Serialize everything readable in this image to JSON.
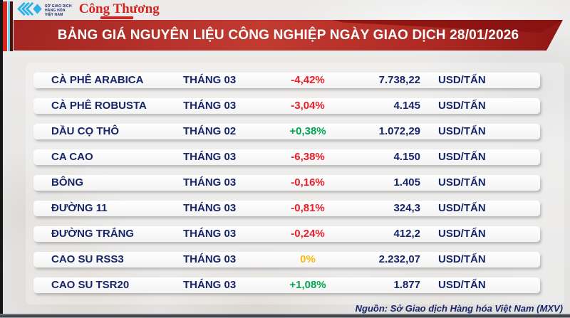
{
  "logos": {
    "mxv": {
      "lines": [
        "SỞ GIAO DỊCH",
        "HÀNG HÓA",
        "VIỆT NAM"
      ]
    },
    "congthuong": {
      "text": "Công Thương"
    }
  },
  "header": {
    "title": "BẢNG GIÁ NGUYÊN LIỆU CÔNG NGHIỆP NGÀY GIAO DỊCH 28/01/2026"
  },
  "table": {
    "rows": [
      {
        "name": "CÀ PHÊ ARABICA",
        "month": "THÁNG 03",
        "change": "-4,42%",
        "direction": "down",
        "price": "7.738,22",
        "unit": "USD/TẤN"
      },
      {
        "name": "CÀ PHÊ ROBUSTA",
        "month": "THÁNG 03",
        "change": "-3,04%",
        "direction": "down",
        "price": "4.145",
        "unit": "USD/TẤN"
      },
      {
        "name": "DẦU CỌ THÔ",
        "month": "THÁNG 02",
        "change": "+0,38%",
        "direction": "up",
        "price": "1.072,29",
        "unit": "USD/TẤN"
      },
      {
        "name": "CA CAO",
        "month": "THÁNG 03",
        "change": "-6,38%",
        "direction": "down",
        "price": "4.150",
        "unit": "USD/TẤN"
      },
      {
        "name": "BÔNG",
        "month": "THÁNG 03",
        "change": "-0,16%",
        "direction": "down",
        "price": "1.405",
        "unit": "USD/TẤN"
      },
      {
        "name": "ĐƯỜNG 11",
        "month": "THÁNG 03",
        "change": "-0,81%",
        "direction": "down",
        "price": "324,3",
        "unit": "USD/TẤN"
      },
      {
        "name": "ĐƯỜNG TRẮNG",
        "month": "THÁNG 03",
        "change": "-0,24%",
        "direction": "down",
        "price": "412,2",
        "unit": "USD/TẤN"
      },
      {
        "name": "CAO SU RSS3",
        "month": "THÁNG 03",
        "change": "0%",
        "direction": "flat",
        "price": "2.232,07",
        "unit": "USD/TẤN"
      },
      {
        "name": "CAO SU TSR20",
        "month": "THÁNG 03",
        "change": "+1,08%",
        "direction": "up",
        "price": "1.877",
        "unit": "USD/TẤN"
      }
    ]
  },
  "footer": {
    "source": "Nguồn: Sở Giao dịch Hàng hóa Việt Nam (MXV)"
  },
  "colors": {
    "up": "#00a651",
    "down": "#ee1c25",
    "flat": "#fdb913",
    "navy": "#17256b",
    "banner_red": "#b02a24",
    "accent_cyan": "#6fd4f4",
    "logo_blue": "#2bb3e8"
  },
  "chart_data": {
    "type": "table",
    "title": "BẢNG GIÁ NGUYÊN LIỆU CÔNG NGHIỆP NGÀY GIAO DỊCH 28/01/2026",
    "rows": [
      {
        "commodity": "CÀ PHÊ ARABICA",
        "month": "THÁNG 03",
        "change_pct": -4.42,
        "price": 7738.22,
        "unit": "USD/TẤN"
      },
      {
        "commodity": "CÀ PHÊ ROBUSTA",
        "month": "THÁNG 03",
        "change_pct": -3.04,
        "price": 4145,
        "unit": "USD/TẤN"
      },
      {
        "commodity": "DẦU CỌ THÔ",
        "month": "THÁNG 02",
        "change_pct": 0.38,
        "price": 1072.29,
        "unit": "USD/TẤN"
      },
      {
        "commodity": "CA CAO",
        "month": "THÁNG 03",
        "change_pct": -6.38,
        "price": 4150,
        "unit": "USD/TẤN"
      },
      {
        "commodity": "BÔNG",
        "month": "THÁNG 03",
        "change_pct": -0.16,
        "price": 1405,
        "unit": "USD/TẤN"
      },
      {
        "commodity": "ĐƯỜNG 11",
        "month": "THÁNG 03",
        "change_pct": -0.81,
        "price": 324.3,
        "unit": "USD/TẤN"
      },
      {
        "commodity": "ĐƯỜNG TRẮNG",
        "month": "THÁNG 03",
        "change_pct": -0.24,
        "price": 412.2,
        "unit": "USD/TẤN"
      },
      {
        "commodity": "CAO SU RSS3",
        "month": "THÁNG 03",
        "change_pct": 0,
        "price": 2232.07,
        "unit": "USD/TẤN"
      },
      {
        "commodity": "CAO SU TSR20",
        "month": "THÁNG 03",
        "change_pct": 1.08,
        "price": 1877,
        "unit": "USD/TẤN"
      }
    ],
    "source": "Nguồn: Sở Giao dịch Hàng hóa Việt Nam (MXV)"
  }
}
